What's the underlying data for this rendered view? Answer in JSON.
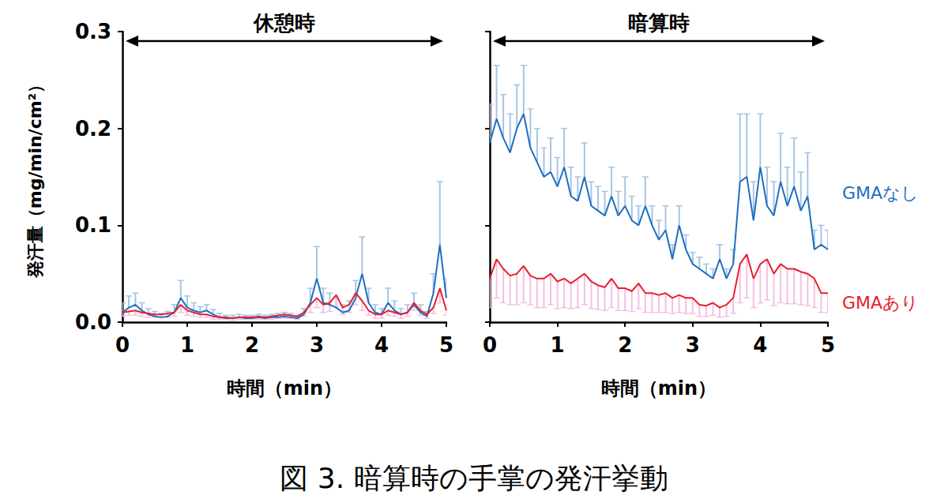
{
  "caption": "図 3. 暗算時の手掌の発汗挙動",
  "chart_data": [
    {
      "type": "line",
      "title": "休憩時",
      "x_label": "時間（min）",
      "y_label": "発汗量（mg/min/cm²）",
      "xlim": [
        0,
        5
      ],
      "xticks": [
        0,
        1,
        2,
        3,
        4,
        5
      ],
      "ylim": [
        0,
        0.3
      ],
      "yticks": [
        {
          "value": 0,
          "label": "0.0"
        },
        0.1,
        0.2,
        0.3
      ],
      "grid": false,
      "x": [
        0,
        0.1,
        0.2,
        0.3,
        0.4,
        0.5,
        0.6,
        0.7,
        0.8,
        0.9,
        1,
        1.1,
        1.2,
        1.3,
        1.4,
        1.5,
        1.6,
        1.7,
        1.8,
        1.9,
        2,
        2.1,
        2.2,
        2.3,
        2.4,
        2.5,
        2.6,
        2.7,
        2.8,
        2.9,
        3,
        3.1,
        3.2,
        3.3,
        3.4,
        3.5,
        3.6,
        3.7,
        3.8,
        3.9,
        4,
        4.1,
        4.2,
        4.3,
        4.4,
        4.5,
        4.6,
        4.7,
        4.8,
        4.9,
        5
      ],
      "series": [
        {
          "color": "#1f6fbf",
          "values": [
            0.01,
            0.015,
            0.018,
            0.012,
            0.008,
            0.006,
            0.005,
            0.006,
            0.01,
            0.025,
            0.015,
            0.012,
            0.01,
            0.012,
            0.008,
            0.005,
            0.004,
            0.004,
            0.005,
            0.004,
            0.004,
            0.005,
            0.004,
            0.005,
            0.005,
            0.006,
            0.005,
            0.004,
            0.008,
            0.02,
            0.045,
            0.02,
            0.018,
            0.015,
            0.01,
            0.012,
            0.025,
            0.05,
            0.02,
            0.01,
            0.008,
            0.02,
            0.012,
            0.008,
            0.01,
            0.018,
            0.01,
            0.006,
            0.03,
            0.08,
            0.025
          ],
          "err_plus": [
            0.01,
            0.012,
            0.012,
            0.008,
            0.006,
            0.005,
            0.004,
            0.005,
            0.008,
            0.018,
            0.012,
            0.008,
            0.006,
            0.006,
            0.005,
            0.004,
            0.003,
            0.003,
            0.003,
            0.003,
            0.003,
            0.003,
            0.003,
            0.003,
            0.004,
            0.004,
            0.004,
            0.003,
            0.006,
            0.015,
            0.033,
            0.015,
            0.012,
            0.01,
            0.008,
            0.01,
            0.018,
            0.038,
            0.015,
            0.008,
            0.006,
            0.015,
            0.01,
            0.006,
            0.008,
            0.012,
            0.008,
            0.005,
            0.02,
            0.065,
            0.02
          ]
        },
        {
          "color": "#e8202a",
          "values": [
            0.01,
            0.011,
            0.012,
            0.01,
            0.009,
            0.008,
            0.008,
            0.009,
            0.01,
            0.018,
            0.012,
            0.01,
            0.008,
            0.008,
            0.006,
            0.005,
            0.005,
            0.004,
            0.005,
            0.005,
            0.005,
            0.006,
            0.005,
            0.006,
            0.007,
            0.008,
            0.007,
            0.006,
            0.01,
            0.018,
            0.025,
            0.018,
            0.02,
            0.028,
            0.015,
            0.018,
            0.03,
            0.022,
            0.012,
            0.008,
            0.008,
            0.012,
            0.01,
            0.008,
            0.01,
            0.02,
            0.012,
            0.008,
            0.015,
            0.035,
            0.012
          ],
          "err_minus": [
            0.004,
            0.004,
            0.005,
            0.004,
            0.004,
            0.003,
            0.003,
            0.004,
            0.004,
            0.008,
            0.005,
            0.004,
            0.003,
            0.003,
            0.003,
            0.002,
            0.002,
            0.002,
            0.002,
            0.002,
            0.002,
            0.003,
            0.002,
            0.003,
            0.003,
            0.004,
            0.003,
            0.003,
            0.004,
            0.008,
            0.01,
            0.008,
            0.009,
            0.012,
            0.007,
            0.008,
            0.012,
            0.01,
            0.005,
            0.004,
            0.004,
            0.005,
            0.004,
            0.004,
            0.004,
            0.008,
            0.005,
            0.004,
            0.006,
            0.015,
            0.005
          ]
        }
      ]
    },
    {
      "type": "line",
      "title": "暗算時",
      "x_label": "時間（min）",
      "xlim": [
        0,
        5
      ],
      "xticks": [
        0,
        1,
        2,
        3,
        4,
        5
      ],
      "ylim": [
        0,
        0.3
      ],
      "yticks": [
        {
          "value": 0,
          "label": "0.0"
        },
        0.1,
        0.2,
        0.3
      ],
      "grid": false,
      "tick_labels": "x",
      "x": [
        0,
        0.1,
        0.2,
        0.3,
        0.4,
        0.5,
        0.6,
        0.7,
        0.8,
        0.9,
        1,
        1.1,
        1.2,
        1.3,
        1.4,
        1.5,
        1.6,
        1.7,
        1.8,
        1.9,
        2,
        2.1,
        2.2,
        2.3,
        2.4,
        2.5,
        2.6,
        2.7,
        2.8,
        2.9,
        3,
        3.1,
        3.2,
        3.3,
        3.4,
        3.5,
        3.6,
        3.7,
        3.8,
        3.9,
        4,
        4.1,
        4.2,
        4.3,
        4.4,
        4.5,
        4.6,
        4.7,
        4.8,
        4.9,
        5
      ],
      "series": [
        {
          "name": "GMAなし",
          "color": "#1f6fbf",
          "values": [
            0.185,
            0.21,
            0.19,
            0.175,
            0.2,
            0.215,
            0.18,
            0.165,
            0.15,
            0.155,
            0.14,
            0.16,
            0.13,
            0.125,
            0.15,
            0.12,
            0.115,
            0.11,
            0.13,
            0.11,
            0.12,
            0.105,
            0.1,
            0.12,
            0.1,
            0.085,
            0.095,
            0.065,
            0.1,
            0.075,
            0.06,
            0.055,
            0.05,
            0.045,
            0.065,
            0.045,
            0.06,
            0.145,
            0.15,
            0.105,
            0.16,
            0.12,
            0.11,
            0.145,
            0.12,
            0.14,
            0.115,
            0.13,
            0.075,
            0.08,
            0.075
          ],
          "err_plus": [
            0.04,
            0.055,
            0.045,
            0.04,
            0.045,
            0.05,
            0.04,
            0.035,
            0.03,
            0.035,
            0.03,
            0.04,
            0.03,
            0.025,
            0.035,
            0.025,
            0.025,
            0.025,
            0.03,
            0.025,
            0.03,
            0.025,
            0.02,
            0.03,
            0.02,
            0.02,
            0.025,
            0.015,
            0.02,
            0.015,
            0.012,
            0.012,
            0.01,
            0.01,
            0.015,
            0.01,
            0.015,
            0.07,
            0.065,
            0.04,
            0.055,
            0.04,
            0.035,
            0.05,
            0.04,
            0.05,
            0.04,
            0.045,
            0.02,
            0.02,
            0.02
          ]
        },
        {
          "name": "GMAあり",
          "color": "#e8202a",
          "values": [
            0.045,
            0.065,
            0.055,
            0.048,
            0.05,
            0.058,
            0.048,
            0.045,
            0.045,
            0.05,
            0.042,
            0.045,
            0.04,
            0.045,
            0.05,
            0.042,
            0.038,
            0.036,
            0.045,
            0.035,
            0.035,
            0.032,
            0.04,
            0.03,
            0.03,
            0.028,
            0.03,
            0.025,
            0.028,
            0.025,
            0.025,
            0.018,
            0.017,
            0.02,
            0.015,
            0.018,
            0.025,
            0.06,
            0.07,
            0.045,
            0.06,
            0.065,
            0.05,
            0.06,
            0.055,
            0.055,
            0.052,
            0.05,
            0.045,
            0.03,
            0.03
          ],
          "err_minus": [
            0.03,
            0.04,
            0.035,
            0.03,
            0.032,
            0.038,
            0.03,
            0.03,
            0.03,
            0.032,
            0.028,
            0.03,
            0.026,
            0.03,
            0.032,
            0.028,
            0.025,
            0.024,
            0.03,
            0.023,
            0.023,
            0.021,
            0.026,
            0.02,
            0.02,
            0.018,
            0.02,
            0.016,
            0.018,
            0.016,
            0.016,
            0.012,
            0.011,
            0.013,
            0.01,
            0.012,
            0.016,
            0.04,
            0.045,
            0.03,
            0.04,
            0.042,
            0.033,
            0.04,
            0.036,
            0.036,
            0.034,
            0.033,
            0.03,
            0.02,
            0.02
          ]
        }
      ]
    }
  ]
}
